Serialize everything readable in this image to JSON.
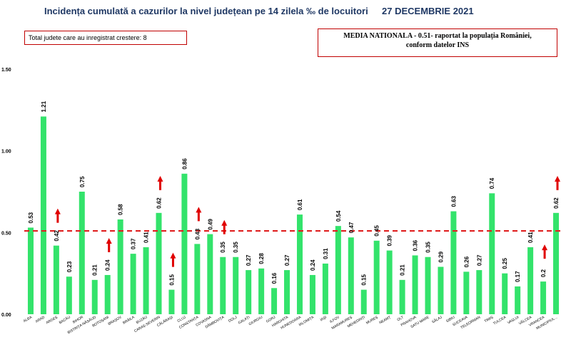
{
  "header": {
    "title": "Incidența cumulată a cazurilor la nivel județean pe 14 zilela ‰ de locuitori",
    "date": "27 DECEMBRIE 2021",
    "total_box": "Total judete care au inregistrat crestere: 8",
    "media_line1": "MEDIA NATIONALA - 0.51- raportat la populația României,",
    "media_line2": "conform datelor INS"
  },
  "colors": {
    "bar": "#33e36b",
    "average_line": "#e02020",
    "arrow": "#e00000",
    "title": "#1f3864"
  },
  "chart_data": {
    "type": "bar",
    "title": "Incidența cumulată a cazurilor la nivel județean pe 14 zilela ‰ de locuitori",
    "xlabel": "",
    "ylabel": "",
    "ylim": [
      0,
      1.5
    ],
    "yticks": [
      "0.00",
      "0.50",
      "1.00",
      "1.50"
    ],
    "grid": false,
    "average": 0.51,
    "categories": [
      "ALBA",
      "ARAD",
      "ARGEȘ",
      "BACĂU",
      "BIHOR",
      "BISTRIȚA-NĂSĂUD",
      "BOTOȘANI",
      "BRAȘOV",
      "BRĂILA",
      "BUZĂU",
      "CARAȘ-SEVERIN",
      "CĂLĂRAȘI",
      "CLUJ",
      "CONSTANȚA",
      "COVASNA",
      "DÂMBOVIȚA",
      "DOLJ",
      "GALAȚI",
      "GIURGIU",
      "GORJ",
      "HARGHITA",
      "HUNEDOARA",
      "IALOMIȚA",
      "IAȘI",
      "ILFOV",
      "MARAMUREȘ",
      "MEHEDINȚI",
      "MUREȘ",
      "NEAMȚ",
      "OLT",
      "PRAHOVA",
      "SATU MARE",
      "SĂLAJ",
      "SIBIU",
      "SUCEAVA",
      "TELEORMAN",
      "TIMIȘ",
      "TULCEA",
      "VASLUI",
      "VÂLCEA",
      "VRANCEA",
      "MUNICIPIUL..."
    ],
    "values": [
      0.53,
      1.21,
      0.42,
      0.23,
      0.75,
      0.21,
      0.24,
      0.58,
      0.37,
      0.41,
      0.62,
      0.15,
      0.86,
      0.43,
      0.49,
      0.35,
      0.35,
      0.27,
      0.28,
      0.16,
      0.27,
      0.61,
      0.24,
      0.31,
      0.54,
      0.47,
      0.15,
      0.45,
      0.39,
      0.21,
      0.36,
      0.35,
      0.29,
      0.63,
      0.26,
      0.27,
      0.74,
      0.25,
      0.17,
      0.41,
      0.2,
      0.62
    ],
    "labels": [
      "0.53",
      "1.21",
      "0.42",
      "0.23",
      "0.75",
      "0.21",
      "0.24",
      "0.58",
      "0.37",
      "0.41",
      "0.62",
      "0.15",
      "0.86",
      "0.43",
      "0.49",
      "0.35",
      "0.35",
      "0.27",
      "0.28",
      "0.16",
      "0.27",
      "0.61",
      "0.24",
      "0.31",
      "0.54",
      "0.47",
      "0.15",
      "0.45",
      "0.39",
      "0.21",
      "0.36",
      "0.35",
      "0.29",
      "0.63",
      "0.26",
      "0.27",
      "0.74",
      "0.25",
      "0.17",
      "0.41",
      "0.2",
      "0.62"
    ],
    "increase": [
      "ARGEȘ",
      "BOTOȘANI",
      "CARAȘ-SEVERIN",
      "CĂLĂRAȘI",
      "CONSTANȚA",
      "DÂMBOVIȚA",
      "VRANCEA",
      "MUNICIPIUL..."
    ]
  }
}
